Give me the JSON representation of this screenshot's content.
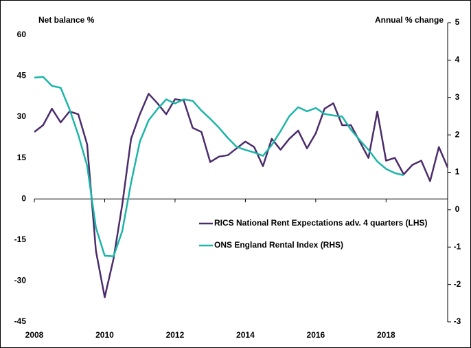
{
  "chart_data": {
    "type": "line",
    "y_label": "Net balance %",
    "y2_label": "Annual % change",
    "x": [
      2008,
      2008.25,
      2008.5,
      2008.75,
      2009,
      2009.25,
      2009.5,
      2009.75,
      2010,
      2010.25,
      2010.5,
      2010.75,
      2011,
      2011.25,
      2011.5,
      2011.75,
      2012,
      2012.25,
      2012.5,
      2012.75,
      2013,
      2013.25,
      2013.5,
      2013.75,
      2014,
      2014.25,
      2014.5,
      2014.75,
      2015,
      2015.25,
      2015.5,
      2015.75,
      2016,
      2016.25,
      2016.5,
      2016.75,
      2017,
      2017.25,
      2017.5,
      2017.75,
      2018,
      2018.25,
      2018.5,
      2018.75,
      2019,
      2019.25,
      2019.5,
      2019.75
    ],
    "series": [
      {
        "name": "RICS National Rent Expectations adv. 4 quarters (LHS)",
        "color": "#4b2c6b",
        "axis": "y",
        "values": [
          24.5,
          27,
          33,
          28,
          32,
          31,
          20,
          -19,
          -36,
          -22,
          -2,
          22,
          31,
          38.5,
          35,
          31,
          36.5,
          36,
          26,
          24.5,
          13.5,
          15.5,
          16,
          18.5,
          21,
          19,
          12,
          22,
          18,
          22,
          25,
          18.5,
          24,
          33,
          35,
          27,
          27,
          21,
          15,
          32,
          14,
          15,
          9,
          12.5,
          14,
          6.5,
          19,
          11.5
        ]
      },
      {
        "name": "ONS England Rental Index (RHS)",
        "color": "#1bb5a8",
        "axis": "y2",
        "values": [
          3.53,
          3.55,
          3.31,
          3.26,
          2.69,
          2.0,
          1.18,
          -0.48,
          -1.23,
          -1.25,
          -0.57,
          0.72,
          1.82,
          2.39,
          2.69,
          2.95,
          2.84,
          2.95,
          2.91,
          2.65,
          2.43,
          2.19,
          1.92,
          1.68,
          1.6,
          1.53,
          1.44,
          1.73,
          2.1,
          2.5,
          2.74,
          2.63,
          2.72,
          2.56,
          2.52,
          2.49,
          2.14,
          1.86,
          1.6,
          1.29,
          1.09,
          0.98,
          0.92,
          null,
          null,
          null,
          null,
          null
        ]
      }
    ],
    "xlim": [
      2008,
      2019.75
    ],
    "xticks": [
      2008,
      2010,
      2012,
      2014,
      2016,
      2018
    ],
    "ylim": [
      -45,
      64.5
    ],
    "yticks": [
      60,
      45,
      30,
      15,
      0,
      -15,
      -30,
      -45
    ],
    "y2lim": [
      -3,
      5
    ],
    "y2ticks": [
      5,
      4,
      3,
      2,
      1,
      0,
      -1,
      -2,
      -3
    ],
    "legend": "right"
  }
}
